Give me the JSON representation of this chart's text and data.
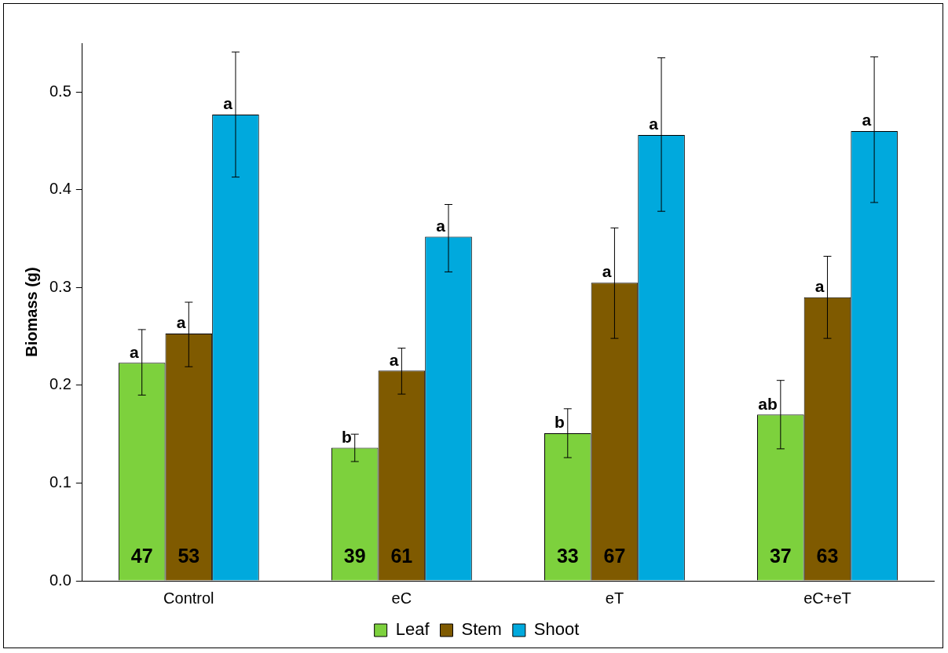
{
  "chart_data": {
    "type": "bar",
    "ylabel": "Biomass (g)",
    "categories": [
      "Control",
      "eC",
      "eT",
      "eC+eT"
    ],
    "series": [
      {
        "name": "Leaf",
        "color": "#7dd13d",
        "values": [
          0.223,
          0.136,
          0.151,
          0.17
        ],
        "errors": [
          [
            0.19,
            0.257
          ],
          [
            0.122,
            0.15
          ],
          [
            0.126,
            0.176
          ],
          [
            0.135,
            0.205
          ]
        ],
        "value_labels": [
          "a",
          "b",
          "b",
          "ab"
        ]
      },
      {
        "name": "Stem",
        "color": "#7f5a00",
        "values": [
          0.253,
          0.215,
          0.305,
          0.29
        ],
        "errors": [
          [
            0.219,
            0.285
          ],
          [
            0.191,
            0.238
          ],
          [
            0.248,
            0.361
          ],
          [
            0.248,
            0.332
          ]
        ],
        "value_labels": [
          "a",
          "a",
          "a",
          "a"
        ]
      },
      {
        "name": "Shoot",
        "color": "#00a9dd",
        "values": [
          0.477,
          0.352,
          0.456,
          0.46
        ],
        "errors": [
          [
            0.413,
            0.541
          ],
          [
            0.316,
            0.385
          ],
          [
            0.378,
            0.535
          ],
          [
            0.387,
            0.536
          ]
        ],
        "value_labels": [
          "a",
          "a",
          "a",
          "a"
        ]
      }
    ],
    "annotations": [
      "47",
      "53",
      "39",
      "61",
      "33",
      "67",
      "37",
      "63"
    ],
    "ylim": [
      0,
      0.55
    ],
    "yticks": [
      {
        "value": 0,
        "label": "0.0"
      },
      {
        "value": 0.1,
        "label": "0.1"
      },
      {
        "value": 0.2,
        "label": "0.2"
      },
      {
        "value": 0.3,
        "label": "0.3"
      },
      {
        "value": 0.4,
        "label": "0.4"
      },
      {
        "value": 0.5,
        "label": "0.5"
      }
    ],
    "grid": false,
    "legend": "bottom"
  }
}
